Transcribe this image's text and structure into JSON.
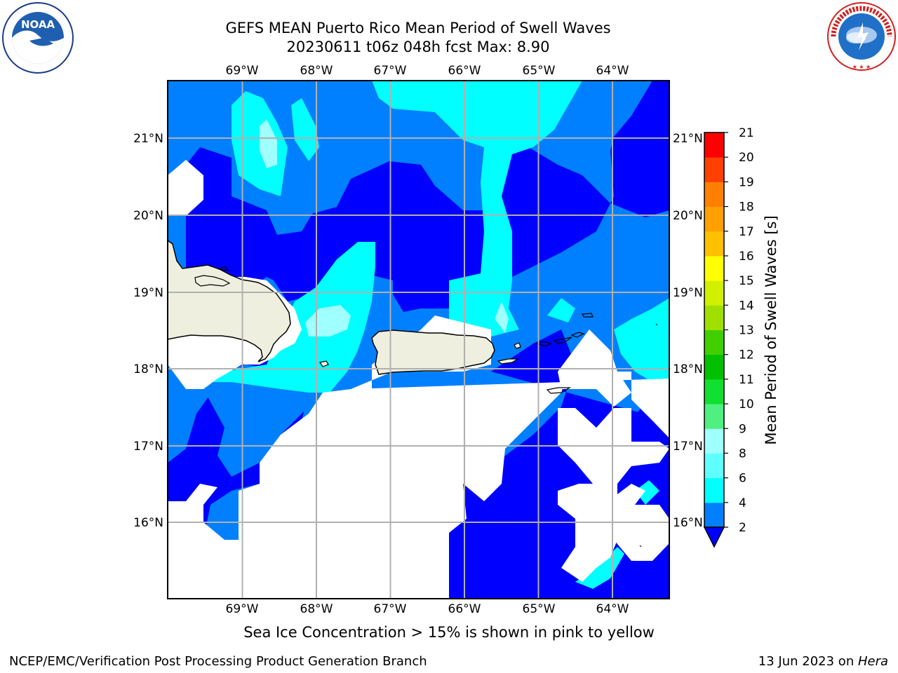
{
  "title_line1": "GEFS MEAN Puerto Rico Mean Period of Swell Waves",
  "title_line2": "20230611 t06z 048h fcst   Max: 8.90",
  "lon_ticks": [
    "69°W",
    "68°W",
    "67°W",
    "66°W",
    "65°W",
    "64°W"
  ],
  "lat_ticks": [
    "21°N",
    "20°N",
    "19°N",
    "18°N",
    "17°N",
    "16°N"
  ],
  "colorbar": {
    "label": "Mean Period of Swell Waves [s]",
    "ticks": [
      "2",
      "4",
      "6",
      "8",
      "9",
      "10",
      "11",
      "12",
      "13",
      "14",
      "15",
      "16",
      "17",
      "18",
      "19",
      "20",
      "21"
    ],
    "colors": [
      "#0000ff",
      "#0080ff",
      "#00ffff",
      "#60ffff",
      "#a0ffff",
      "#50f080",
      "#10e030",
      "#00c000",
      "#40d000",
      "#a0e000",
      "#d0f000",
      "#ffff00",
      "#ffc000",
      "#ffa000",
      "#ff8000",
      "#ff4000",
      "#ff0000"
    ]
  },
  "map_colors": {
    "level_2_4": "#0000ff",
    "level_4_6": "#0080ff",
    "level_6_8": "#00ffff",
    "level_8_9": "#a0ffff",
    "land": "#efefdf",
    "no_data": "#ffffff",
    "grid": "#b0b0b0"
  },
  "footer_note": "Sea Ice Concentration > 15% is shown in pink to yellow",
  "credit_left": "NCEP/EMC/Verification Post Processing Product Generation Branch",
  "credit_date": "13 Jun 2023 on ",
  "credit_machine": "Hera",
  "logos": {
    "left": "noaa-logo",
    "right": "nws-logo"
  }
}
